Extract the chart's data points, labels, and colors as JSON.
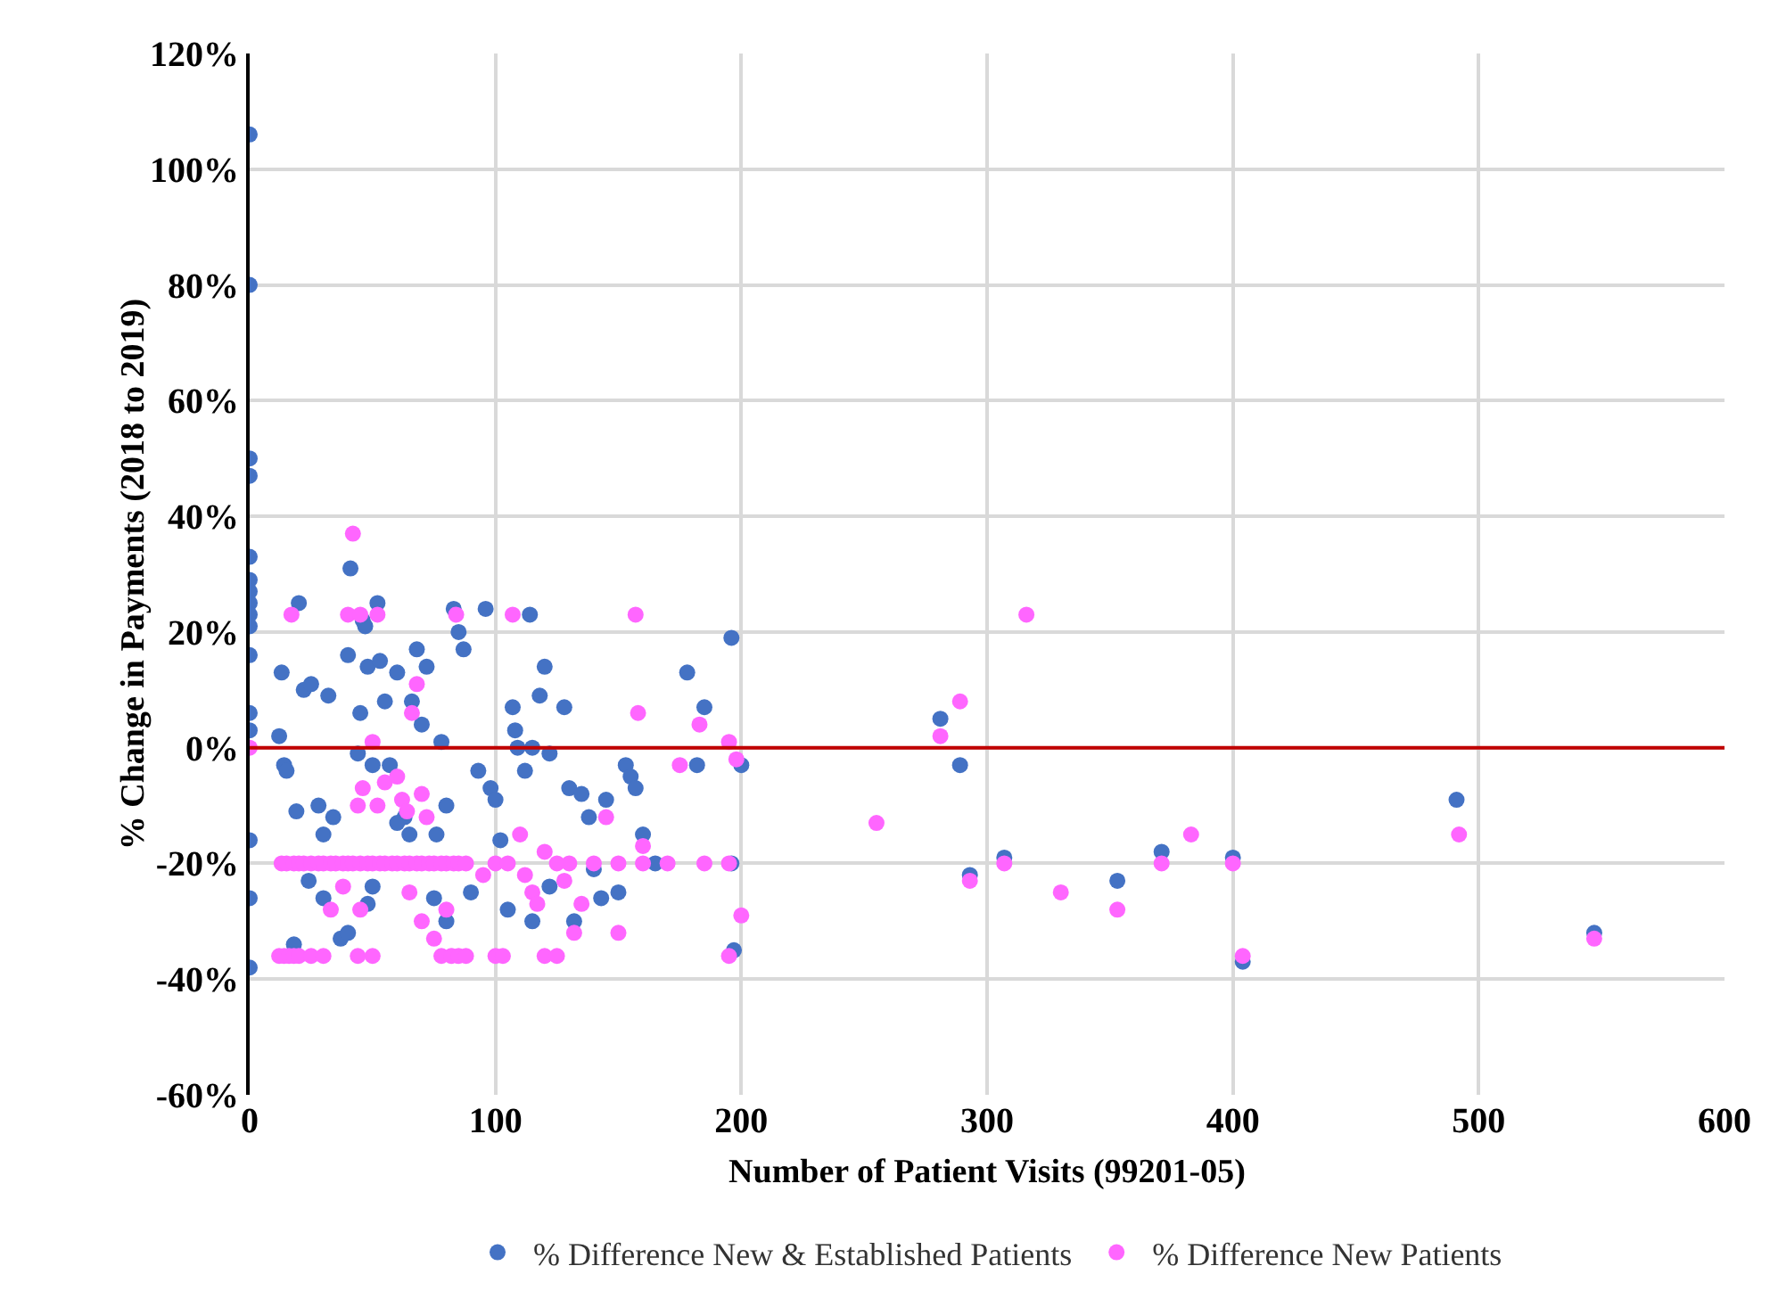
{
  "chart_data": {
    "type": "scatter",
    "xlabel": "Number of Patient Visits (99201-05)",
    "ylabel": "% Change in Payments (2018 to 2019)",
    "xlim": [
      0,
      600
    ],
    "xticks": [
      0,
      100,
      200,
      300,
      400,
      500,
      600
    ],
    "ylim": [
      -60,
      120
    ],
    "yticks": [
      {
        "value": -60,
        "label": "-60%"
      },
      {
        "value": -40,
        "label": "-40%"
      },
      {
        "value": -20,
        "label": "-20%"
      },
      {
        "value": 0,
        "label": "0%"
      },
      {
        "value": 20,
        "label": "20%"
      },
      {
        "value": 40,
        "label": "40%"
      },
      {
        "value": 60,
        "label": "60%"
      },
      {
        "value": 80,
        "label": "80%"
      },
      {
        "value": 100,
        "label": "100%"
      },
      {
        "value": 120,
        "label": "120%"
      }
    ],
    "grid": true,
    "legend": "bottom",
    "marker": "circle",
    "ref_lines": [
      {
        "axis": "y",
        "value": 0,
        "color": "#c00000"
      }
    ],
    "series": [
      {
        "name": "% Difference New & Established Patients",
        "color": "#4472c4",
        "x": [
          0,
          0,
          0,
          0,
          0,
          0,
          0,
          0,
          0,
          0,
          0,
          0,
          0,
          0,
          0,
          0,
          13,
          12,
          14,
          15,
          20,
          22,
          25,
          28,
          30,
          32,
          34,
          19,
          40,
          41,
          45,
          44,
          46,
          47,
          48,
          50,
          52,
          53,
          55,
          57,
          60,
          63,
          66,
          68,
          70,
          72,
          76,
          78,
          80,
          83,
          85,
          87,
          90,
          93,
          96,
          98,
          100,
          102,
          105,
          107,
          108,
          109,
          114,
          112,
          115,
          118,
          120,
          122,
          128,
          130,
          132,
          135,
          138,
          140,
          143,
          145,
          150,
          153,
          155,
          157,
          160,
          165,
          178,
          182,
          185,
          196,
          197,
          200,
          196,
          24,
          30,
          37,
          40,
          48,
          50,
          75,
          80,
          18,
          60,
          65,
          115,
          122,
          281,
          289,
          293,
          307,
          353,
          371,
          400,
          404,
          491,
          547
        ],
        "values": [
          106,
          80,
          50,
          47,
          33,
          29,
          27,
          25,
          23,
          21,
          16,
          6,
          3,
          -16,
          -26,
          -38,
          13,
          2,
          -3,
          -4,
          25,
          10,
          11,
          -10,
          -15,
          9,
          -12,
          -11,
          16,
          31,
          6,
          -1,
          22,
          21,
          14,
          -3,
          25,
          15,
          8,
          -3,
          13,
          -12,
          8,
          17,
          4,
          14,
          -15,
          1,
          -10,
          24,
          20,
          17,
          -25,
          -4,
          24,
          -7,
          -9,
          -16,
          -28,
          7,
          3,
          0,
          23,
          -4,
          0,
          9,
          14,
          -1,
          7,
          -7,
          -30,
          -8,
          -12,
          -21,
          -26,
          -9,
          -25,
          -3,
          -5,
          -7,
          -15,
          -20,
          13,
          -3,
          7,
          19,
          -35,
          -3,
          -20,
          -23,
          -26,
          -33,
          -32,
          -27,
          -24,
          -26,
          -30,
          -34,
          -13,
          -15,
          -30,
          -24,
          5,
          -3,
          -22,
          -19,
          -23,
          -18,
          -19,
          -37,
          -9,
          -32
        ]
      },
      {
        "name": "% Difference New Patients",
        "color": "#ff66ff",
        "x": [
          0,
          13,
          15,
          18,
          20,
          22,
          25,
          28,
          30,
          33,
          35,
          38,
          40,
          42,
          45,
          48,
          50,
          53,
          55,
          58,
          60,
          63,
          65,
          68,
          70,
          73,
          75,
          78,
          80,
          83,
          85,
          88,
          12,
          14,
          16,
          18,
          20,
          25,
          30,
          44,
          50,
          78,
          82,
          85,
          88,
          100,
          103,
          120,
          125,
          17,
          42,
          40,
          45,
          52,
          84,
          107,
          157,
          50,
          46,
          44,
          52,
          55,
          60,
          62,
          64,
          66,
          68,
          70,
          72,
          38,
          33,
          45,
          65,
          70,
          75,
          80,
          110,
          112,
          115,
          117,
          120,
          125,
          128,
          132,
          135,
          145,
          150,
          158,
          160,
          175,
          183,
          195,
          198,
          200,
          195,
          195,
          185,
          170,
          160,
          150,
          140,
          130,
          100,
          105,
          95,
          255,
          281,
          289,
          293,
          307,
          316,
          330,
          353,
          371,
          383,
          400,
          404,
          492,
          547
        ],
        "values": [
          0,
          -20,
          -20,
          -20,
          -20,
          -20,
          -20,
          -20,
          -20,
          -20,
          -20,
          -20,
          -20,
          -20,
          -20,
          -20,
          -20,
          -20,
          -20,
          -20,
          -20,
          -20,
          -20,
          -20,
          -20,
          -20,
          -20,
          -20,
          -20,
          -20,
          -20,
          -20,
          -36,
          -36,
          -36,
          -36,
          -36,
          -36,
          -36,
          -36,
          -36,
          -36,
          -36,
          -36,
          -36,
          -36,
          -36,
          -36,
          -36,
          23,
          37,
          23,
          23,
          23,
          23,
          23,
          23,
          1,
          -7,
          -10,
          -10,
          -6,
          -5,
          -9,
          -11,
          6,
          11,
          -8,
          -12,
          -24,
          -28,
          -28,
          -25,
          -30,
          -33,
          -28,
          -15,
          -22,
          -25,
          -27,
          -18,
          -20,
          -23,
          -32,
          -27,
          -12,
          -32,
          6,
          -17,
          -3,
          4,
          1,
          -2,
          -29,
          -36,
          -20,
          -20,
          -20,
          -20,
          -20,
          -20,
          -20,
          -20,
          -20,
          -22,
          -13,
          2,
          8,
          -23,
          -20,
          23,
          -25,
          -28,
          -20,
          -15,
          -20,
          -36,
          -15,
          -33
        ]
      }
    ]
  }
}
